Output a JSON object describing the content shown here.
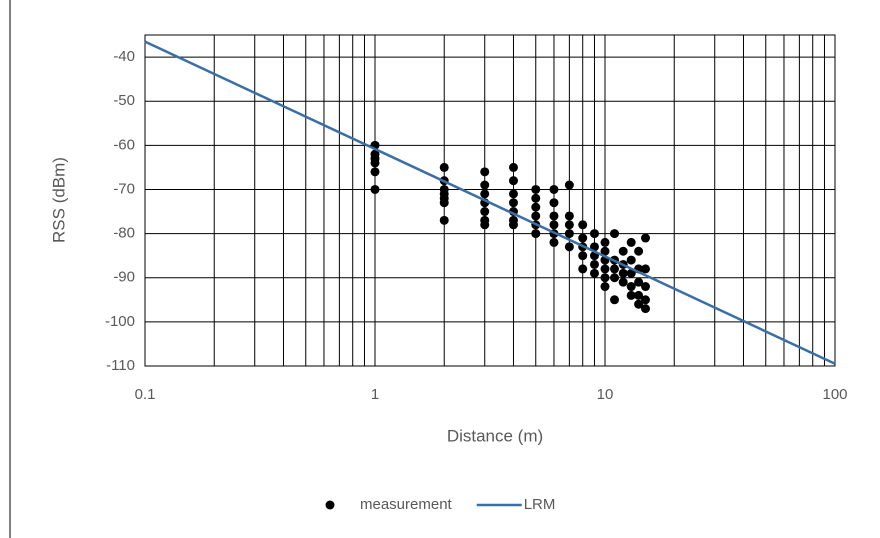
{
  "chart_data": {
    "type": "scatter",
    "xlabel": "Distance (m)",
    "ylabel": "RSS (dBm)",
    "xscale": "log",
    "xlim": [
      0.1,
      100
    ],
    "xticks": [
      0.1,
      1,
      10,
      100
    ],
    "ylim": [
      -110,
      -35
    ],
    "yticks": [
      -40,
      -50,
      -60,
      -70,
      -80,
      -90,
      -100,
      -110
    ],
    "grid": true,
    "minor_grid": true,
    "legend": "bottom",
    "series": [
      {
        "name": "measurement",
        "color": "#000000",
        "type": "scatter",
        "x": [
          1,
          1,
          1,
          1,
          1,
          1,
          2,
          2,
          2,
          2,
          2,
          2,
          2,
          3,
          3,
          3,
          3,
          3,
          3,
          3,
          4,
          4,
          4,
          4,
          4,
          4,
          4,
          5,
          5,
          5,
          5,
          5,
          5,
          6,
          6,
          6,
          6,
          6,
          6,
          7,
          7,
          7,
          7,
          7,
          8,
          8,
          8,
          8,
          8,
          9,
          9,
          9,
          9,
          9,
          10,
          10,
          10,
          10,
          10,
          10,
          11,
          11,
          11,
          11,
          11,
          12,
          12,
          12,
          12,
          13,
          13,
          13,
          13,
          13,
          14,
          14,
          14,
          14,
          14,
          15,
          15,
          15,
          15,
          15
        ],
        "values": [
          -60,
          -62,
          -63,
          -64,
          -66,
          -70,
          -65,
          -68,
          -70,
          -71,
          -72,
          -73,
          -77,
          -66,
          -69,
          -71,
          -73,
          -75,
          -77,
          -78,
          -65,
          -68,
          -71,
          -73,
          -75,
          -77,
          -78,
          -70,
          -72,
          -74,
          -76,
          -78,
          -80,
          -70,
          -73,
          -76,
          -78,
          -80,
          -82,
          -69,
          -76,
          -78,
          -80,
          -83,
          -78,
          -81,
          -83,
          -85,
          -88,
          -80,
          -83,
          -85,
          -87,
          -89,
          -82,
          -84,
          -86,
          -88,
          -90,
          -92,
          -80,
          -86,
          -88,
          -90,
          -95,
          -84,
          -87,
          -89,
          -91,
          -82,
          -86,
          -89,
          -92,
          -94,
          -84,
          -88,
          -91,
          -94,
          -96,
          -81,
          -88,
          -92,
          -95,
          -97
        ]
      },
      {
        "name": "LRM",
        "color": "#3a6ea5",
        "type": "line",
        "x": [
          0.1,
          100
        ],
        "values": [
          -36.5,
          -109.5
        ]
      }
    ]
  }
}
